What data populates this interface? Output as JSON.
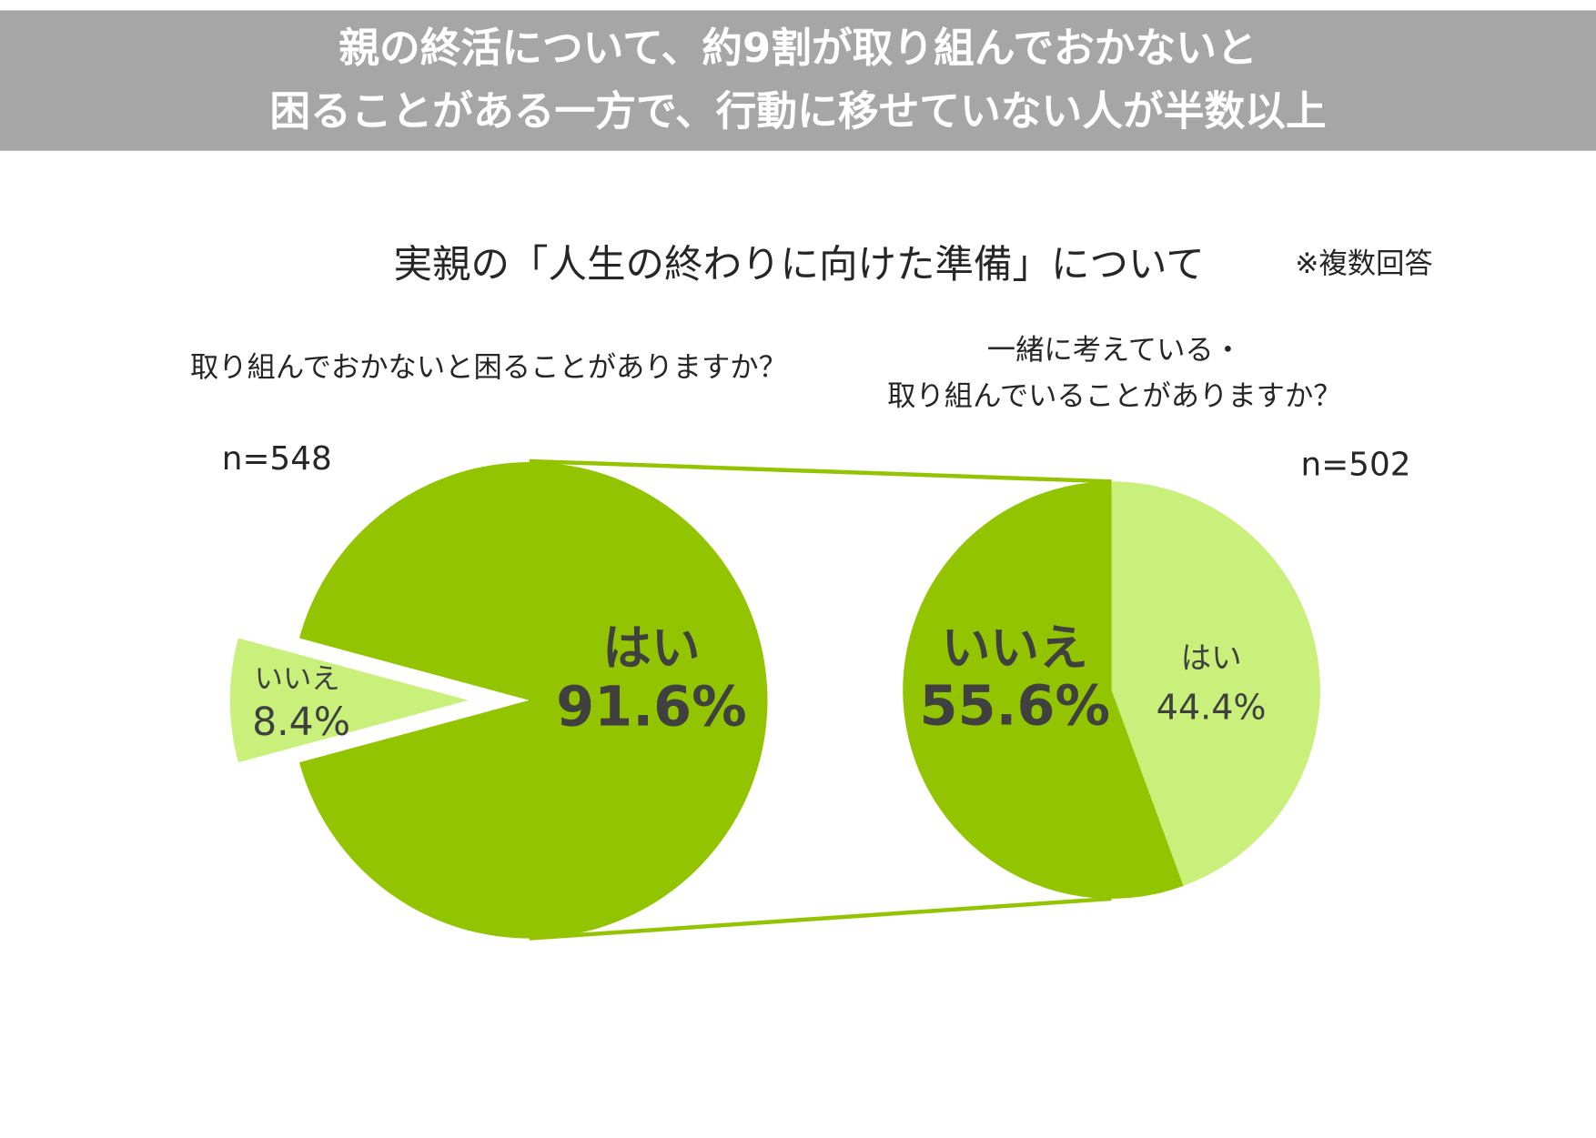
{
  "header": {
    "lines": [
      "親の終活について、約9割が取り組んでおかないと",
      "困ることがある一方で、行動に移せていない人が半数以上"
    ]
  },
  "title": "実親の「人生の終わりに向けた準備」について",
  "note": "※複数回答",
  "chart_data": [
    {
      "type": "pie",
      "question_lines": [
        "取り組んでおかないと困ることがありますか？"
      ],
      "n_label": "n=548",
      "categories": [
        "はい",
        "いいえ"
      ],
      "values": [
        91.6,
        8.4
      ],
      "value_labels": [
        "91.6%",
        "8.4%"
      ],
      "colors": [
        "#92c500",
        "#c8f07a"
      ]
    },
    {
      "type": "pie",
      "question_lines": [
        "一緒に考えている・",
        "取り組んでいることがありますか？"
      ],
      "n_label": "n=502",
      "categories": [
        "はい",
        "いいえ"
      ],
      "values": [
        44.4,
        55.6
      ],
      "value_labels": [
        "44.4%",
        "55.6%"
      ],
      "colors": [
        "#c8f07a",
        "#92c500"
      ]
    }
  ]
}
